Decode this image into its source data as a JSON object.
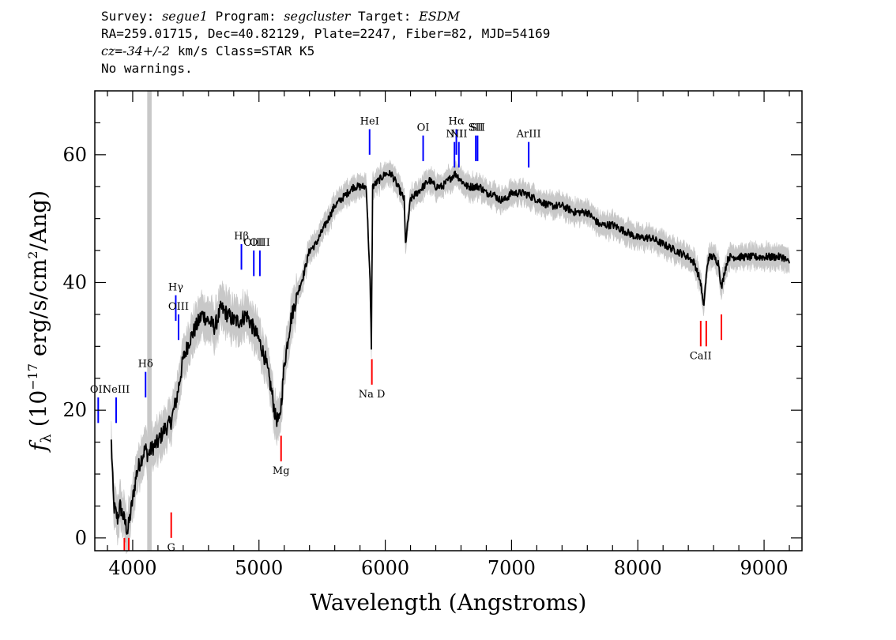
{
  "header": {
    "line1": {
      "survey_label": "Survey: ",
      "survey": "segue1",
      "program_label": " Program: ",
      "program": "segcluster",
      "target_label": " Target: ",
      "target": "ESDM"
    },
    "line2": "RA=259.01715, Dec=40.82129, Plate=2247, Fiber=82, MJD=54169",
    "line3": {
      "cz_prefix": "cz",
      "cz_eq": "=",
      "cz_val": "-34+/-2",
      "cz_rest": " km/s Class=STAR K5"
    },
    "line4": "No warnings."
  },
  "chart_data": {
    "type": "line",
    "title": "",
    "xlabel": "Wavelength (Angstroms)",
    "ylabel": "f_λ (10^-17 erg/s/cm^2/Ang)",
    "ylabel_parts": {
      "f": "f",
      "sub": "λ",
      "a": " (10",
      "exp1": "−17",
      "b": " erg/s/cm",
      "exp2": "2",
      "c": "/Ang)"
    },
    "xlim": [
      3700,
      9300
    ],
    "ylim": [
      -2,
      70
    ],
    "xticks": [
      "4000",
      "5000",
      "6000",
      "7000",
      "8000",
      "9000"
    ],
    "yticks": [
      "0",
      "20",
      "40",
      "60"
    ],
    "series": [
      {
        "color": "#000000",
        "x": [
          3830,
          3850,
          3880,
          3900,
          3930,
          3960,
          4000,
          4030,
          4060,
          4100,
          4120,
          4150,
          4200,
          4250,
          4300,
          4350,
          4400,
          4450,
          4500,
          4550,
          4600,
          4650,
          4700,
          4750,
          4800,
          4850,
          4900,
          4950,
          5000,
          5050,
          5100,
          5130,
          5160,
          5180,
          5200,
          5250,
          5300,
          5350,
          5400,
          5450,
          5500,
          5550,
          5600,
          5650,
          5700,
          5750,
          5800,
          5850,
          5880,
          5890,
          5900,
          5950,
          6000,
          6050,
          6100,
          6150,
          6160,
          6200,
          6250,
          6300,
          6350,
          6400,
          6450,
          6500,
          6550,
          6560,
          6600,
          6650,
          6700,
          6750,
          6800,
          6850,
          6900,
          6950,
          7000,
          7100,
          7200,
          7300,
          7400,
          7500,
          7600,
          7650,
          7700,
          7800,
          7900,
          8000,
          8100,
          8200,
          8300,
          8400,
          8450,
          8498,
          8520,
          8542,
          8560,
          8600,
          8640,
          8662,
          8690,
          8720,
          8750,
          8800,
          8850,
          8900,
          8950,
          9000,
          9050,
          9100,
          9150,
          9200
        ],
        "y": [
          15,
          5,
          3,
          5,
          3,
          1,
          6,
          10,
          12,
          14,
          13,
          14,
          15,
          17,
          18,
          22,
          28,
          31,
          33,
          35,
          34,
          33,
          36,
          35,
          34,
          34,
          35,
          33,
          31,
          28,
          23,
          19,
          18,
          22,
          27,
          34,
          38,
          41,
          45,
          46,
          48,
          50,
          52,
          53,
          54,
          55,
          55,
          55,
          40,
          30,
          55,
          56,
          57,
          57,
          55,
          53,
          46,
          53,
          54,
          55,
          56,
          55,
          55,
          56,
          57,
          57,
          56,
          55,
          55,
          55,
          54,
          54,
          53,
          53,
          54,
          54,
          53,
          52,
          52,
          51,
          51,
          50,
          49,
          49,
          48,
          47,
          47,
          46,
          45,
          44,
          43,
          40,
          36,
          41,
          44,
          44,
          43,
          39,
          42,
          44,
          44,
          44,
          44,
          44,
          44,
          44,
          44,
          44,
          44,
          43
        ]
      }
    ],
    "emission_lines": [
      {
        "label": "OII",
        "x": 3727,
        "y_top": 22,
        "y_bot": 18
      },
      {
        "label": "NeIII",
        "x": 3869,
        "y_top": 22,
        "y_bot": 18
      },
      {
        "label": "Hδ",
        "x": 4102,
        "y_top": 26,
        "y_bot": 22
      },
      {
        "label": "Hγ",
        "x": 4341,
        "y_top": 38,
        "y_bot": 34
      },
      {
        "label": "OIII",
        "x": 4363,
        "y_top": 35,
        "y_bot": 31
      },
      {
        "label": "Hβ",
        "x": 4861,
        "y_top": 46,
        "y_bot": 42
      },
      {
        "label": "OIII",
        "x": 4959,
        "y_top": 45,
        "y_bot": 41
      },
      {
        "label": "OIII",
        "x": 5007,
        "y_top": 45,
        "y_bot": 41
      },
      {
        "label": "HeI",
        "x": 5876,
        "y_top": 64,
        "y_bot": 60
      },
      {
        "label": "OI",
        "x": 6300,
        "y_top": 63,
        "y_bot": 59
      },
      {
        "label": "NII",
        "x": 6548,
        "y_top": 62,
        "y_bot": 58
      },
      {
        "label": "Hα",
        "x": 6563,
        "y_top": 64,
        "y_bot": 60
      },
      {
        "label": "NII",
        "x": 6583,
        "y_top": 62,
        "y_bot": 58
      },
      {
        "label": "SII",
        "x": 6717,
        "y_top": 63,
        "y_bot": 59
      },
      {
        "label": "SII",
        "x": 6731,
        "y_top": 63,
        "y_bot": 59
      },
      {
        "label": "ArIII",
        "x": 7136,
        "y_top": 62,
        "y_bot": 58
      }
    ],
    "absorption_lines": [
      {
        "label": "",
        "x": 3934,
        "y_top": 0,
        "y_bot": -4
      },
      {
        "label": "",
        "x": 3969,
        "y_top": 0,
        "y_bot": -4
      },
      {
        "label": "G",
        "x": 4305,
        "y_top": 4,
        "y_bot": 0
      },
      {
        "label": "Mg",
        "x": 5175,
        "y_top": 16,
        "y_bot": 12
      },
      {
        "label": "Na D",
        "x": 5894,
        "y_top": 28,
        "y_bot": 24
      },
      {
        "label": "CaII",
        "x": 8498,
        "y_top": 34,
        "y_bot": 30
      },
      {
        "label": "",
        "x": 8542,
        "y_top": 34,
        "y_bot": 30
      },
      {
        "label": "",
        "x": 8662,
        "y_top": 35,
        "y_bot": 31
      }
    ],
    "masked_band": {
      "x0": 4115,
      "x1": 4150
    },
    "colors": {
      "flux": "#000000",
      "error": "#c8c8c8",
      "emission": "#0000ff",
      "absorption": "#ff0000",
      "mask": "#c8c8c8"
    }
  }
}
